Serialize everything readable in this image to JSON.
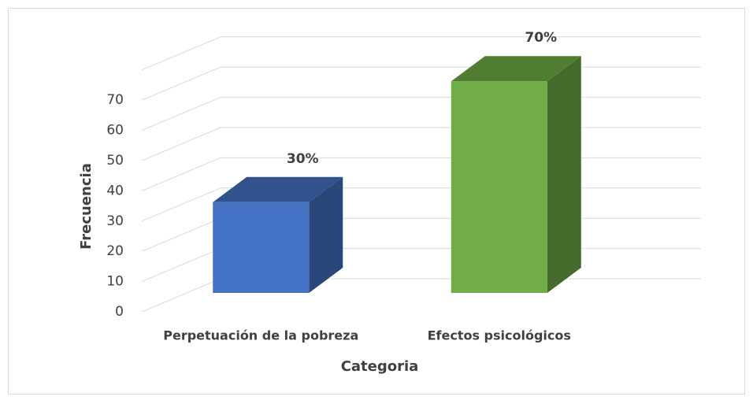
{
  "chart_data": {
    "type": "bar3d",
    "categories": [
      "Perpetuación de la pobreza",
      "Efectos psicológicos"
    ],
    "values": [
      30,
      70
    ],
    "value_labels": [
      "30%",
      "70%"
    ],
    "colors": [
      "#4472c4",
      "#70ad47"
    ],
    "xlabel": "Categoria",
    "ylabel": "Frecuencia",
    "ylim": [
      0,
      80
    ],
    "yticks": [
      0,
      10,
      20,
      30,
      40,
      50,
      60,
      70
    ],
    "grid": true
  }
}
